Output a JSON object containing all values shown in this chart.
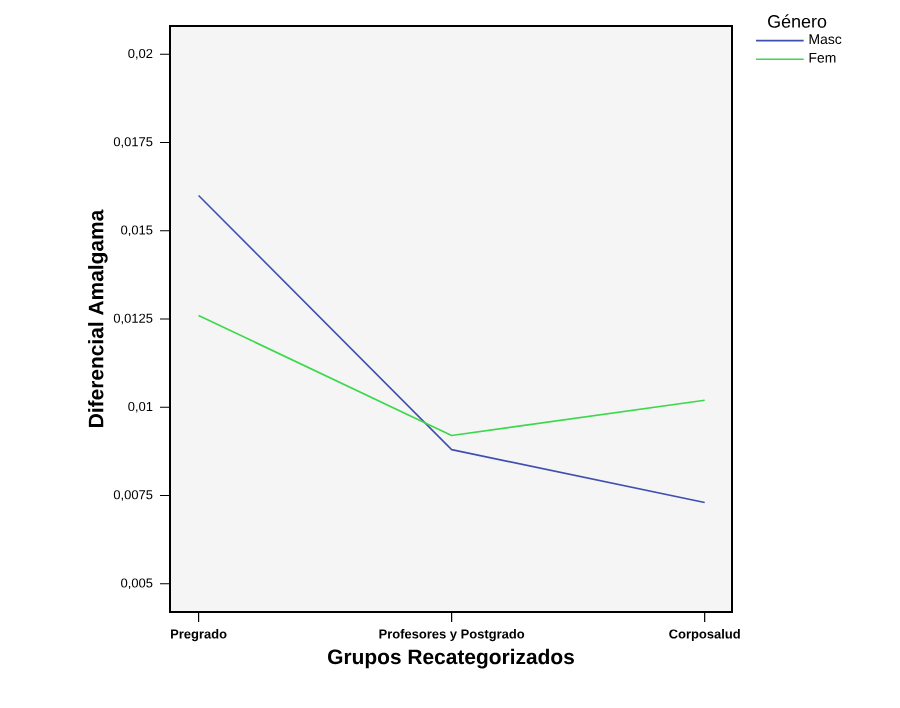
{
  "chart_data": {
    "type": "line",
    "xlabel": "Grupos Recategorizados",
    "ylabel": "Diferencial Amalgama",
    "legend_title": "Género",
    "categories": [
      "Pregrado",
      "Profesores y Postgrado",
      "Corposalud"
    ],
    "series": [
      {
        "name": "Masc",
        "color": "#3e4fb0",
        "values": [
          0.016,
          0.0088,
          0.0073
        ]
      },
      {
        "name": "Fem",
        "color": "#3cd84a",
        "values": [
          0.0126,
          0.0092,
          0.0102
        ]
      }
    ],
    "ylim": [
      0.0042,
      0.0208
    ],
    "yticks": [
      {
        "value": 0.005,
        "label": "0,005"
      },
      {
        "value": 0.0075,
        "label": "0,0075"
      },
      {
        "value": 0.01,
        "label": "0,01"
      },
      {
        "value": 0.0125,
        "label": "0,0125"
      },
      {
        "value": 0.015,
        "label": "0,015"
      },
      {
        "value": 0.0175,
        "label": "0,0175"
      },
      {
        "value": 0.02,
        "label": "0,02"
      }
    ],
    "legend": "top right",
    "grid": false,
    "marker": "none",
    "line_style": "solid"
  }
}
